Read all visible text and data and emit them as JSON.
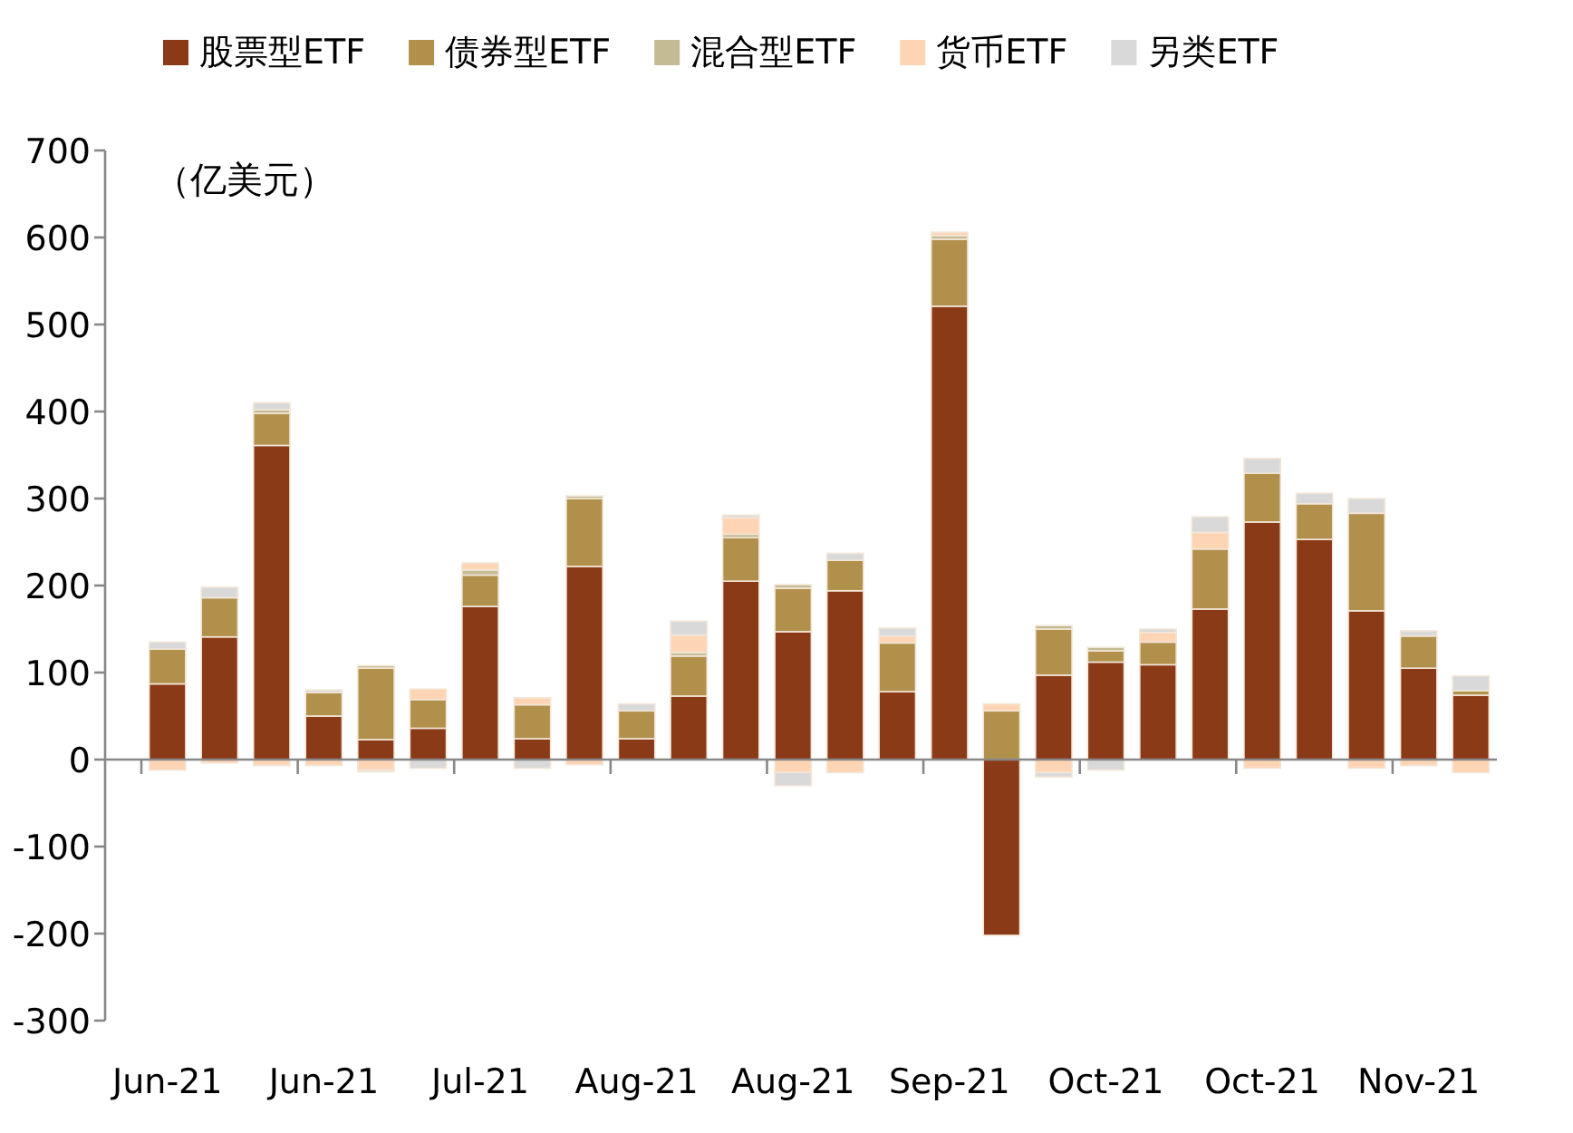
{
  "chart_data": {
    "type": "bar",
    "stacked": true,
    "ylabel": "（亿美元）",
    "categories": [
      "Jun-21",
      null,
      null,
      "Jun-21",
      null,
      null,
      "Jul-21",
      null,
      null,
      "Aug-21",
      null,
      null,
      "Aug-21",
      null,
      null,
      "Sep-21",
      null,
      null,
      "Oct-21",
      null,
      null,
      "Oct-21",
      null,
      null,
      "Nov-21",
      null
    ],
    "ylim": [
      -300,
      700
    ],
    "yticks": [
      -300,
      -200,
      -100,
      0,
      100,
      200,
      300,
      400,
      500,
      600,
      700
    ],
    "legend": "top",
    "series": [
      {
        "name": "股票型ETF",
        "color": "#8b3a17",
        "values": [
          87,
          141,
          361,
          50,
          23,
          36,
          176,
          24,
          222,
          24,
          73,
          205,
          147,
          194,
          78,
          521,
          -202,
          97,
          112,
          109,
          173,
          273,
          253,
          171,
          105,
          74
        ]
      },
      {
        "name": "债券型ETF",
        "color": "#b0904b",
        "values": [
          40,
          45,
          37,
          27,
          82,
          33,
          36,
          39,
          78,
          32,
          46,
          50,
          50,
          35,
          56,
          77,
          56,
          53,
          13,
          26,
          69,
          56,
          41,
          112,
          37,
          5
        ]
      },
      {
        "name": "混合型ETF",
        "color": "#c4bb95",
        "values": [
          0,
          0,
          4,
          0,
          3,
          0,
          6,
          0,
          3,
          0,
          4,
          4,
          4,
          0,
          0,
          4,
          0,
          4,
          4,
          0,
          0,
          0,
          0,
          0,
          0,
          0
        ]
      },
      {
        "name": "货币ETF",
        "color": "#fdd5b4",
        "values": [
          -12,
          -4,
          -7,
          -7,
          -12,
          12,
          8,
          8,
          -6,
          0,
          20,
          19,
          -15,
          -15,
          8,
          4,
          8,
          -15,
          0,
          11,
          19,
          -10,
          0,
          -10,
          -7,
          -15
        ]
      },
      {
        "name": "另类ETF",
        "color": "#d9d9d9",
        "values": [
          8,
          12,
          8,
          3,
          -2,
          -10,
          0,
          -10,
          0,
          8,
          16,
          3,
          -15,
          8,
          9,
          0,
          0,
          -5,
          -12,
          4,
          18,
          17,
          12,
          17,
          6,
          17
        ]
      }
    ]
  }
}
